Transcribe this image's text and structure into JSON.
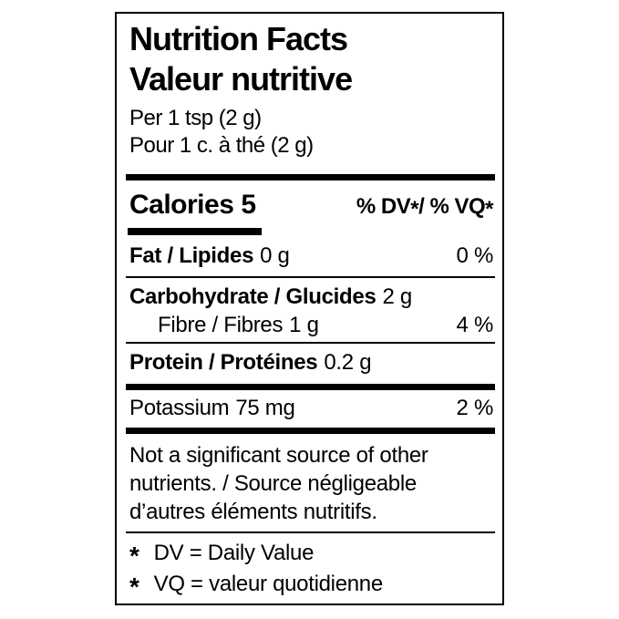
{
  "label": {
    "title_en": "Nutrition Facts",
    "title_fr": "Valeur nutritive",
    "serving_en": "Per 1 tsp (2 g)",
    "serving_fr": "Pour 1 c. à thé (2 g)",
    "calories": {
      "label": "Calories",
      "value": "5"
    },
    "dv_header": {
      "p1": "% DV",
      "star1": "*",
      "p2": "/ % VQ",
      "star2": "*"
    },
    "rows": [
      {
        "name": "Fat / Lipides",
        "amount": "0 g",
        "dv": "0 %"
      },
      {
        "name": "Carbohydrate / Glucides",
        "amount": "2 g",
        "dv": ""
      },
      {
        "name": "Fibre / Fibres",
        "amount": "1 g",
        "dv": "4 %"
      },
      {
        "name": "Protein / Protéines",
        "amount": "0.2 g",
        "dv": ""
      },
      {
        "name": "Potassium",
        "amount": "75 mg",
        "dv": "2 %"
      }
    ],
    "note_lines": [
      "Not a significant source of other",
      "nutrients. / Source négligeable",
      "d’autres éléments nutritifs."
    ],
    "footnotes": [
      {
        "star": "*",
        "text": "DV = Daily Value"
      },
      {
        "star": "*",
        "text": "VQ = valeur quotidienne"
      }
    ]
  },
  "colors": {
    "text": "#000000",
    "background": "#ffffff",
    "border": "#000000"
  }
}
